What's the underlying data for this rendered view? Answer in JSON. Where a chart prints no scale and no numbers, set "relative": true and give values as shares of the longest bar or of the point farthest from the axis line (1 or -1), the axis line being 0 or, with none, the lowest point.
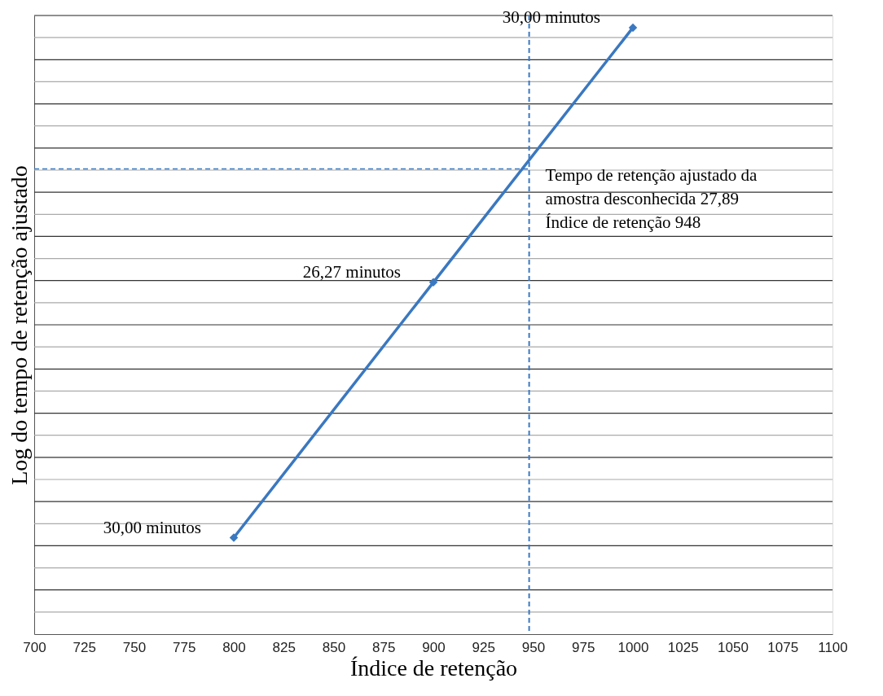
{
  "chart_data": {
    "type": "line",
    "xlabel": "Índice de retenção",
    "ylabel": "Log do tempo de retenção ajustado",
    "x": [
      800,
      900,
      1000
    ],
    "series": [
      {
        "color": "#3a78c0",
        "values": [
          0.159,
          0.58,
          1
        ]
      }
    ],
    "relative": true,
    "marker": "diamond",
    "line_style": "solid",
    "xlim": [
      700,
      1100
    ],
    "xticks": [
      700,
      725,
      750,
      775,
      800,
      825,
      850,
      875,
      900,
      925,
      950,
      975,
      1000,
      1025,
      1050,
      1075,
      1100
    ],
    "grid": "y",
    "tick_labels": "x",
    "ref_lines": [
      {
        "axis": "x",
        "value": 948,
        "color": "#3a78c0",
        "line_style": "dashed"
      },
      {
        "axis": "y",
        "value": 0.767,
        "color": "#3a78c0",
        "line_style": "dashed"
      }
    ],
    "annotations": [
      {
        "text": "30,00 minutos",
        "x": 800,
        "y": 0.159
      },
      {
        "text": "26,27 minutos",
        "x": 900,
        "y": 0.58
      },
      {
        "text": "30,00 minutos",
        "x": 1000,
        "y": 1
      },
      "Tempo de retenção ajustado da\namostra desconhecida 27,89\nÍndice de retenção 948"
    ]
  }
}
